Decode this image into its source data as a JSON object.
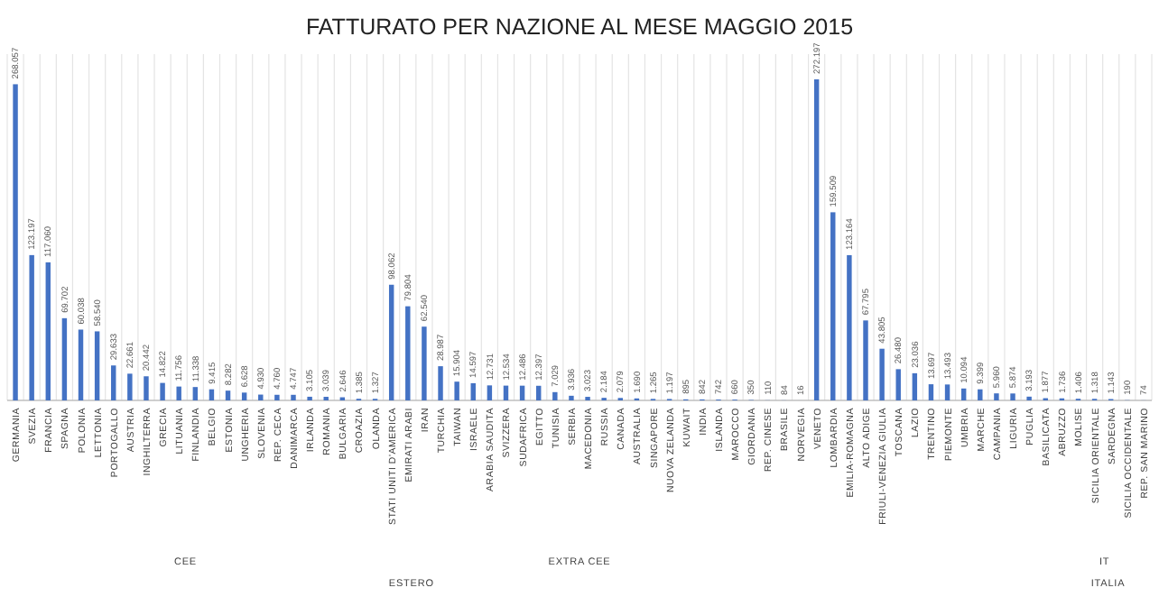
{
  "chart_data": {
    "type": "bar",
    "title": "FATTURATO PER NAZIONE AL MESE MAGGIO 2015",
    "grid": "x",
    "color": "#4472c4",
    "categories": [
      "GERMANIA",
      "SVEZIA",
      "FRANCIA",
      "SPAGNA",
      "POLONIA",
      "LETTONIA",
      "PORTOGALLO",
      "AUSTRIA",
      "INGHILTERRA",
      "GRECIA",
      "LITUANIA",
      "FINLANDIA",
      "BELGIO",
      "ESTONIA",
      "UNGHERIA",
      "SLOVENIA",
      "REP. CECA",
      "DANIMARCA",
      "IRLANDA",
      "ROMANIA",
      "BULGARIA",
      "CROAZIA",
      "OLANDA",
      "STATI UNITI D'AMERICA",
      "EMIRATI ARABI",
      "IRAN",
      "TURCHIA",
      "TAIWAN",
      "ISRAELE",
      "ARABIA SAUDITA",
      "SVIZZERA",
      "SUDAFRICA",
      "EGITTO",
      "TUNISIA",
      "SERBIA",
      "MACEDONIA",
      "RUSSIA",
      "CANADA",
      "AUSTRALIA",
      "SINGAPORE",
      "NUOVA ZELANDA",
      "KUWAIT",
      "INDIA",
      "ISLANDA",
      "MAROCCO",
      "GIORDANIA",
      "REP. CINESE",
      "BRASILE",
      "NORVEGIA",
      "VENETO",
      "LOMBARDIA",
      "EMILIA-ROMAGNA",
      "ALTO ADIGE",
      "FRIULI-VENEZIA GIULIA",
      "TOSCANA",
      "LAZIO",
      "TRENTINO",
      "PIEMONTE",
      "UMBRIA",
      "MARCHE",
      "CAMPANIA",
      "LIGURIA",
      "PUGLIA",
      "BASILICATA",
      "ABRUZZO",
      "MOLISE",
      "SICILIA ORIENTALE",
      "SARDEGNA",
      "SICILIA OCCIDENTALE",
      "REP. SAN MARINO"
    ],
    "values": [
      268057,
      123197,
      117060,
      69702,
      60038,
      58540,
      29633,
      22661,
      20442,
      14822,
      11756,
      11338,
      9415,
      8282,
      6628,
      4930,
      4760,
      4747,
      3105,
      3039,
      2646,
      1385,
      1327,
      98062,
      79804,
      62540,
      28987,
      15904,
      14597,
      12731,
      12534,
      12486,
      12397,
      7029,
      3936,
      3023,
      2184,
      2079,
      1690,
      1265,
      1197,
      895,
      842,
      742,
      660,
      350,
      110,
      84,
      16,
      272197,
      159509,
      123164,
      67795,
      43805,
      26480,
      23036,
      13697,
      13493,
      10094,
      9399,
      5960,
      5874,
      3193,
      1877,
      1736,
      1406,
      1318,
      1143,
      190,
      74
    ],
    "value_labels": [
      "268.057",
      "123.197",
      "117.060",
      "69.702",
      "60.038",
      "58.540",
      "29.633",
      "22.661",
      "20.442",
      "14.822",
      "11.756",
      "11.338",
      "9.415",
      "8.282",
      "6.628",
      "4.930",
      "4.760",
      "4.747",
      "3.105",
      "3.039",
      "2.646",
      "1.385",
      "1.327",
      "98.062",
      "79.804",
      "62.540",
      "28.987",
      "15.904",
      "14.597",
      "12.731",
      "12.534",
      "12.486",
      "12.397",
      "7.029",
      "3.936",
      "3.023",
      "2.184",
      "2.079",
      "1.690",
      "1.265",
      "1.197",
      "895",
      "842",
      "742",
      "660",
      "350",
      "110",
      "84",
      "16",
      "272.197",
      "159.509",
      "123.164",
      "67.795",
      "43.805",
      "26.480",
      "23.036",
      "13.697",
      "13.493",
      "10.094",
      "9.399",
      "5.960",
      "5.874",
      "3.193",
      "1.877",
      "1.736",
      "1.406",
      "1.318",
      "1.143",
      "190",
      "74"
    ],
    "annotations": [
      "CEE",
      "EXTRA CEE",
      "IT",
      "ESTERO",
      "ITALIA"
    ]
  }
}
